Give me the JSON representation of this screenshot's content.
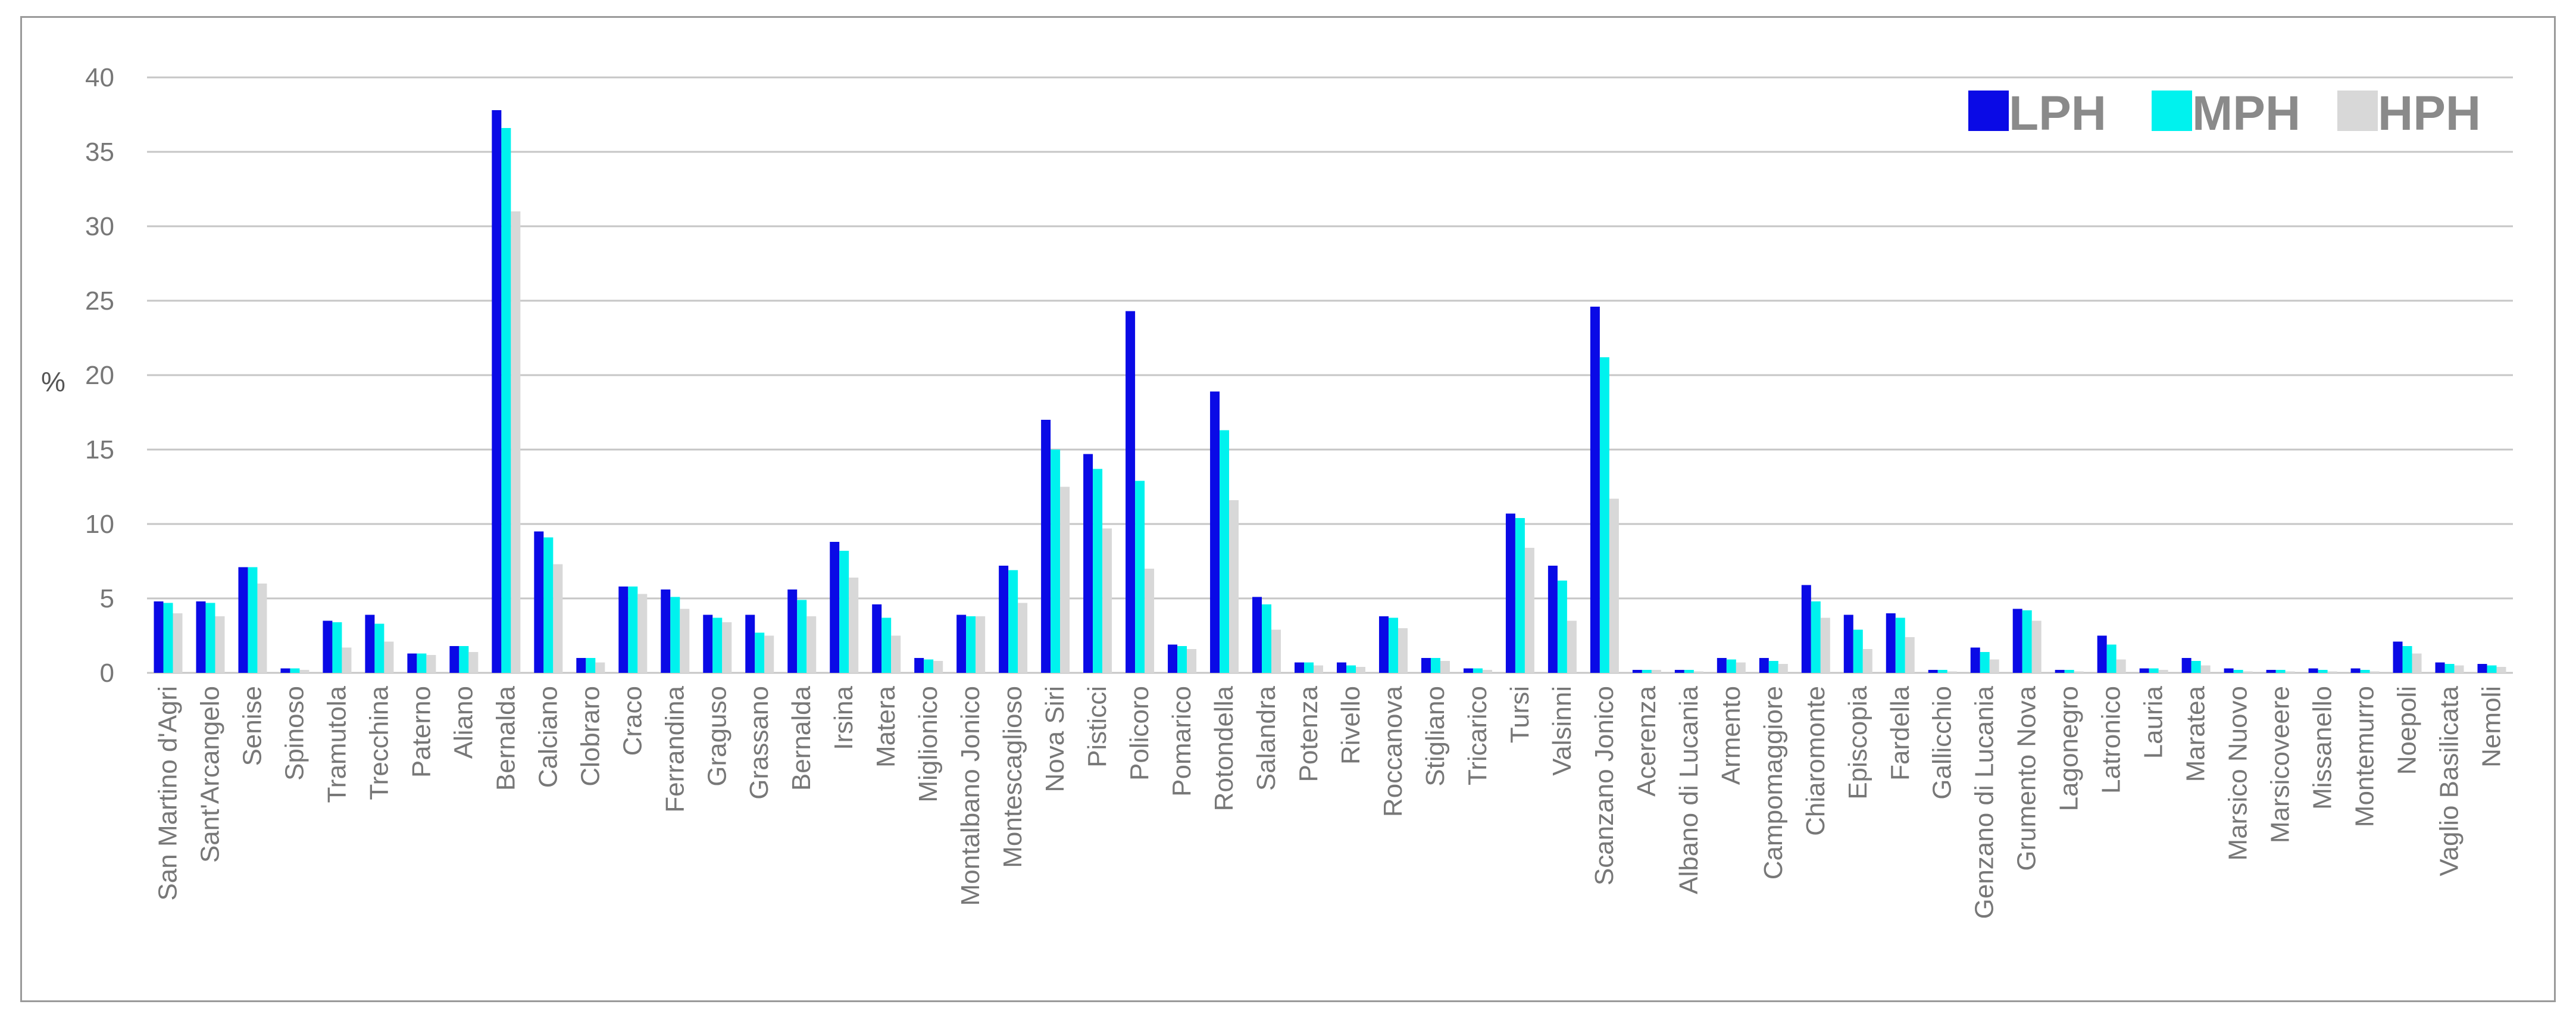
{
  "chart_data": {
    "type": "bar",
    "ylabel": "%",
    "ylim": [
      0,
      40
    ],
    "yticks": [
      0,
      5,
      10,
      15,
      20,
      25,
      30,
      35,
      40
    ],
    "grid": true,
    "legend_position": "top-right",
    "categories": [
      "San Martino d'Agri",
      "Sant'Arcangelo",
      "Senise",
      "Spinoso",
      "Tramutola",
      "Trecchina",
      "Paterno",
      "Aliano",
      "Bernalda",
      "Calciano",
      "Clobraro",
      "Craco",
      "Ferrandina",
      "Graguso",
      "Grassano",
      "Bernalda",
      "Irsina",
      "Matera",
      "Miglionico",
      "Montalbano Jonico",
      "Montescaglioso",
      "Nova Siri",
      "Pisticci",
      "Policoro",
      "Pomarico",
      "Rotondella",
      "Salandra",
      "Potenza",
      "Rivello",
      "Roccanova",
      "Stigliano",
      "Tricarico",
      "Tursi",
      "Valsinni",
      "Scanzano Jonico",
      "Acerenza",
      "Albano di Lucania",
      "Armento",
      "Campomaggiore",
      "Chiaromonte",
      "Episcopia",
      "Fardella",
      "Gallicchio",
      "Genzano di Lucania",
      "Grumento Nova",
      "Lagonegro",
      "Latronico",
      "Lauria",
      "Maratea",
      "Marsico Nuovo",
      "Marsicoveere",
      "Missanello",
      "Montemurro",
      "Noepoli",
      "Vaglio Basilicata",
      "Nemoli"
    ],
    "series": [
      {
        "name": "LPH",
        "color": "#0a0ae6",
        "values": [
          4.8,
          4.8,
          7.1,
          0.3,
          3.5,
          3.9,
          1.3,
          1.8,
          37.8,
          9.5,
          1.0,
          5.8,
          5.6,
          3.9,
          3.9,
          5.6,
          8.8,
          4.6,
          1.0,
          3.9,
          7.2,
          17.0,
          14.7,
          24.3,
          1.9,
          18.9,
          5.1,
          0.7,
          0.7,
          3.8,
          1.0,
          0.3,
          10.7,
          7.2,
          24.6,
          0.2,
          0.2,
          1.0,
          1.0,
          5.9,
          3.9,
          4.0,
          0.2,
          1.7,
          4.3,
          0.2,
          2.5,
          0.3,
          1.0,
          0.3,
          0.2,
          0.3,
          0.3,
          2.1,
          0.7,
          0.6
        ]
      },
      {
        "name": "MPH",
        "color": "#00f2ee",
        "values": [
          4.7,
          4.7,
          7.1,
          0.3,
          3.4,
          3.3,
          1.3,
          1.8,
          36.6,
          9.1,
          1.0,
          5.8,
          5.1,
          3.7,
          2.7,
          4.9,
          8.2,
          3.7,
          0.9,
          3.8,
          6.9,
          15.0,
          13.7,
          12.9,
          1.8,
          16.3,
          4.6,
          0.7,
          0.5,
          3.7,
          1.0,
          0.3,
          10.4,
          6.2,
          21.2,
          0.2,
          0.2,
          0.9,
          0.8,
          4.8,
          2.9,
          3.7,
          0.2,
          1.4,
          4.2,
          0.2,
          1.9,
          0.3,
          0.8,
          0.2,
          0.2,
          0.2,
          0.2,
          1.8,
          0.6,
          0.5
        ]
      },
      {
        "name": "HPH",
        "color": "#d8d8d8",
        "values": [
          4.0,
          3.8,
          6.0,
          0.2,
          1.7,
          2.1,
          1.2,
          1.4,
          31.0,
          7.3,
          0.7,
          5.3,
          4.3,
          3.4,
          2.5,
          3.8,
          6.4,
          2.5,
          0.8,
          3.8,
          4.7,
          12.5,
          9.7,
          7.0,
          1.6,
          11.6,
          2.9,
          0.5,
          0.4,
          3.0,
          0.8,
          0.2,
          8.4,
          3.5,
          11.7,
          0.2,
          0.1,
          0.7,
          0.6,
          3.7,
          1.6,
          2.4,
          0.1,
          0.9,
          3.5,
          0.1,
          0.9,
          0.2,
          0.5,
          0.1,
          0.1,
          0.1,
          0.1,
          1.3,
          0.5,
          0.4
        ]
      }
    ]
  }
}
